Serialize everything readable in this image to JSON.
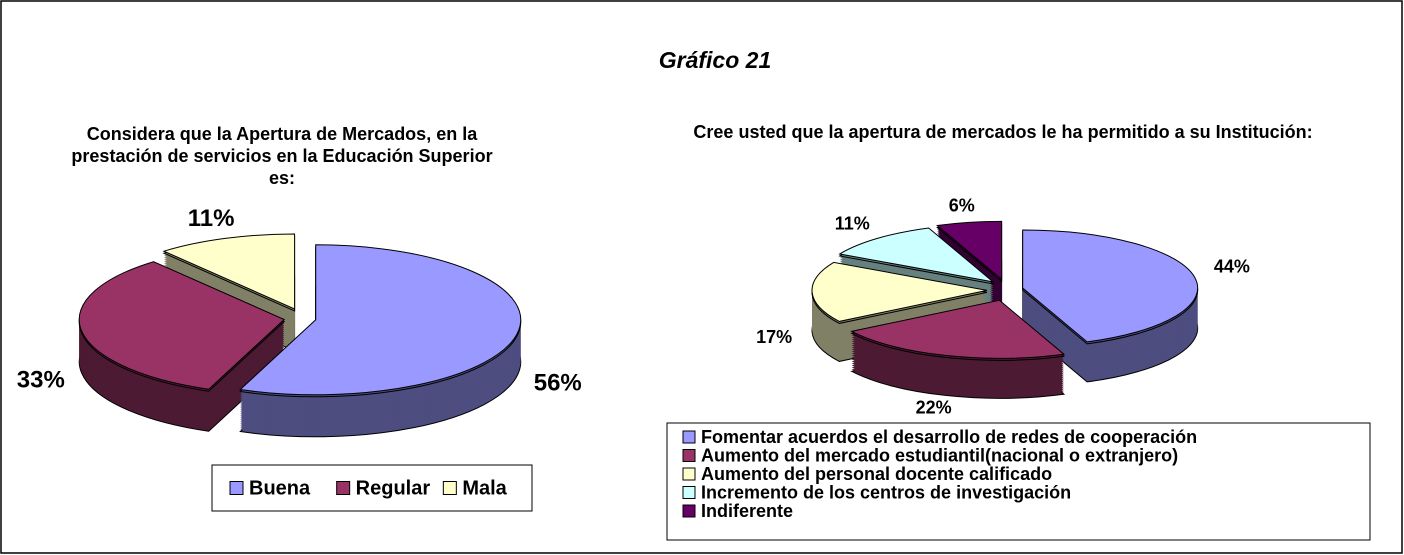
{
  "title": "Gráfico 21",
  "chart_data": [
    {
      "type": "pie",
      "title": "Considera que la Apertura de Mercados, en la prestación de servicios en la Educación Superior es:",
      "categories": [
        "Buena",
        "Regular",
        "Mala"
      ],
      "values": [
        56,
        33,
        11
      ],
      "value_labels": [
        "56%",
        "33%",
        "11%"
      ],
      "colors": [
        "#9999ff",
        "#993366",
        "#ffffcc"
      ],
      "legend": "bottom"
    },
    {
      "type": "pie",
      "title": "Cree usted que la apertura de mercados le ha permitido a su Institución:",
      "categories": [
        "Fomentar acuerdos el desarrollo de redes de cooperación",
        "Aumento del mercado  estudiantil(nacional o extranjero)",
        "Aumento del personal docente calificado",
        "Incremento de los centros de investigación",
        "Indiferente"
      ],
      "values": [
        44,
        22,
        17,
        11,
        6
      ],
      "value_labels": [
        "44%",
        "22%",
        "17%",
        "11%",
        "6%"
      ],
      "colors": [
        "#9999ff",
        "#993366",
        "#ffffcc",
        "#ccffff",
        "#660066"
      ],
      "legend": "bottom"
    }
  ]
}
